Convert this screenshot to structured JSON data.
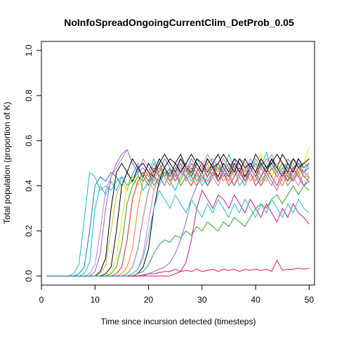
{
  "chart_data": {
    "type": "line",
    "title": "NoInfoSpreadOngoingCurrentClim_DetProb_0.05",
    "xlabel": "Time since incursion detected (timesteps)",
    "ylabel": "Total population (proportion of K)",
    "xlim": [
      0,
      51
    ],
    "ylim": [
      -0.04,
      1.04
    ],
    "xticks": [
      0,
      10,
      20,
      30,
      40,
      50
    ],
    "yticks": [
      0.0,
      0.2,
      0.4,
      0.6,
      0.8,
      1.0
    ],
    "ytick_labels": [
      "0.0",
      "0.2",
      "0.4",
      "0.6",
      "0.8",
      "1.0"
    ],
    "grid": false,
    "legend": "none",
    "x": [
      1,
      2,
      3,
      4,
      5,
      6,
      7,
      8,
      9,
      10,
      11,
      12,
      13,
      14,
      15,
      16,
      17,
      18,
      19,
      20,
      21,
      22,
      23,
      24,
      25,
      26,
      27,
      28,
      29,
      30,
      31,
      32,
      33,
      34,
      35,
      36,
      37,
      38,
      39,
      40,
      41,
      42,
      43,
      44,
      45,
      46,
      47,
      48,
      49,
      50
    ],
    "series": [
      {
        "color": "#17becf",
        "values": [
          0,
          0,
          0,
          0,
          0,
          0.01,
          0.05,
          0.25,
          0.46,
          0.44,
          0.38,
          0.4,
          0.38,
          0.42,
          0.44,
          0.4,
          0.45,
          0.5,
          0.42,
          0.46,
          0.52,
          0.45,
          0.4,
          0.47,
          0.44,
          0.5,
          0.42,
          0.46,
          0.52,
          0.48,
          0.44,
          0.5,
          0.42,
          0.46,
          0.54,
          0.48,
          0.5,
          0.44,
          0.46,
          0.52,
          0.48,
          0.55,
          0.47,
          0.5,
          0.46,
          0.52,
          0.48,
          0.5,
          0.46,
          0.5
        ]
      },
      {
        "color": "#1f77b4",
        "values": [
          0,
          0,
          0,
          0,
          0,
          0,
          0.01,
          0.04,
          0.2,
          0.4,
          0.44,
          0.42,
          0.46,
          0.44,
          0.4,
          0.46,
          0.42,
          0.48,
          0.44,
          0.4,
          0.46,
          0.5,
          0.44,
          0.48,
          0.42,
          0.46,
          0.5,
          0.44,
          0.4,
          0.46,
          0.52,
          0.48,
          0.42,
          0.46,
          0.5,
          0.44,
          0.48,
          0.42,
          0.46,
          0.5,
          0.44,
          0.48,
          0.52,
          0.46,
          0.5,
          0.44,
          0.48,
          0.5,
          0.46,
          0.48
        ]
      },
      {
        "color": "#00bcd4",
        "values": [
          0,
          0,
          0,
          0,
          0,
          0,
          0,
          0.01,
          0.06,
          0.3,
          0.4,
          0.36,
          0.42,
          0.38,
          0.44,
          0.4,
          0.42,
          0.46,
          0.38,
          0.42,
          0.44,
          0.4,
          0.46,
          0.42,
          0.38,
          0.44,
          0.48,
          0.42,
          0.46,
          0.4,
          0.44,
          0.5,
          0.42,
          0.46,
          0.44,
          0.48,
          0.4,
          0.44,
          0.5,
          0.46,
          0.42,
          0.46,
          0.5,
          0.44,
          0.48,
          0.42,
          0.46,
          0.5,
          0.44,
          0.46
        ]
      },
      {
        "color": "#e377c2",
        "values": [
          0,
          0,
          0,
          0,
          0,
          0,
          0,
          0,
          0.01,
          0.05,
          0.2,
          0.38,
          0.44,
          0.48,
          0.52,
          0.56,
          0.5,
          0.46,
          0.52,
          0.48,
          0.44,
          0.5,
          0.46,
          0.42,
          0.48,
          0.52,
          0.46,
          0.5,
          0.44,
          0.48,
          0.54,
          0.5,
          0.46,
          0.52,
          0.48,
          0.44,
          0.5,
          0.46,
          0.52,
          0.48,
          0.44,
          0.5,
          0.54,
          0.48,
          0.46,
          0.52,
          0.5,
          0.46,
          0.5,
          0.48
        ]
      },
      {
        "color": "#9467bd",
        "values": [
          0,
          0,
          0,
          0,
          0,
          0,
          0,
          0,
          0,
          0.02,
          0.1,
          0.3,
          0.44,
          0.5,
          0.54,
          0.56,
          0.5,
          0.46,
          0.48,
          0.44,
          0.5,
          0.46,
          0.52,
          0.48,
          0.44,
          0.5,
          0.46,
          0.52,
          0.48,
          0.44,
          0.4,
          0.46,
          0.5,
          0.44,
          0.48,
          0.52,
          0.46,
          0.44,
          0.5,
          0.46,
          0.52,
          0.48,
          0.44,
          0.5,
          0.46,
          0.4,
          0.44,
          0.48,
          0.46,
          0.44
        ]
      },
      {
        "color": "#000000",
        "values": [
          0,
          0,
          0,
          0,
          0,
          0,
          0,
          0,
          0,
          0,
          0.02,
          0.08,
          0.3,
          0.46,
          0.5,
          0.46,
          0.52,
          0.48,
          0.44,
          0.5,
          0.46,
          0.52,
          0.48,
          0.44,
          0.5,
          0.54,
          0.48,
          0.46,
          0.52,
          0.5,
          0.46,
          0.5,
          0.54,
          0.48,
          0.44,
          0.5,
          0.46,
          0.52,
          0.48,
          0.44,
          0.5,
          0.46,
          0.52,
          0.48,
          0.54,
          0.5,
          0.46,
          0.52,
          0.48,
          0.5
        ]
      },
      {
        "color": "#000000",
        "values": [
          0,
          0,
          0,
          0,
          0,
          0,
          0,
          0,
          0,
          0,
          0,
          0.01,
          0.04,
          0.2,
          0.4,
          0.46,
          0.42,
          0.48,
          0.5,
          0.46,
          0.44,
          0.5,
          0.54,
          0.5,
          0.46,
          0.52,
          0.48,
          0.44,
          0.5,
          0.46,
          0.52,
          0.48,
          0.44,
          0.5,
          0.46,
          0.52,
          0.5,
          0.44,
          0.48,
          0.54,
          0.5,
          0.46,
          0.52,
          0.48,
          0.44,
          0.5,
          0.46,
          0.52,
          0.48,
          0.5
        ]
      },
      {
        "color": "#bcbd22",
        "values": [
          0,
          0,
          0,
          0,
          0,
          0,
          0,
          0,
          0,
          0,
          0.01,
          0.05,
          0.2,
          0.36,
          0.42,
          0.38,
          0.44,
          0.4,
          0.46,
          0.42,
          0.38,
          0.44,
          0.48,
          0.42,
          0.46,
          0.4,
          0.44,
          0.5,
          0.46,
          0.42,
          0.48,
          0.44,
          0.4,
          0.46,
          0.42,
          0.48,
          0.44,
          0.4,
          0.46,
          0.5,
          0.44,
          0.42,
          0.48,
          0.44,
          0.4,
          0.46,
          0.42,
          0.48,
          0.44,
          0.46
        ]
      },
      {
        "color": "#ffd700",
        "values": [
          0,
          0,
          0,
          0,
          0,
          0,
          0,
          0,
          0,
          0,
          0,
          0,
          0.02,
          0.08,
          0.25,
          0.4,
          0.44,
          0.4,
          0.46,
          0.42,
          0.48,
          0.44,
          0.4,
          0.46,
          0.42,
          0.48,
          0.44,
          0.5,
          0.46,
          0.42,
          0.48,
          0.44,
          0.4,
          0.46,
          0.5,
          0.44,
          0.48,
          0.42,
          0.46,
          0.5,
          0.54,
          0.48,
          0.44,
          0.5,
          0.46,
          0.42,
          0.48,
          0.44,
          0.5,
          0.57
        ]
      },
      {
        "color": "#2ca02c",
        "values": [
          0,
          0,
          0,
          0,
          0,
          0,
          0,
          0,
          0,
          0,
          0,
          0,
          0.01,
          0.04,
          0.14,
          0.32,
          0.4,
          0.44,
          0.42,
          0.46,
          0.4,
          0.44,
          0.48,
          0.42,
          0.46,
          0.4,
          0.44,
          0.48,
          0.42,
          0.46,
          0.4,
          0.44,
          0.5,
          0.46,
          0.42,
          0.48,
          0.44,
          0.4,
          0.46,
          0.42,
          0.48,
          0.44,
          0.4,
          0.46,
          0.5,
          0.44,
          0.42,
          0.48,
          0.44,
          0.42
        ]
      },
      {
        "color": "#d62728",
        "values": [
          0,
          0,
          0,
          0,
          0,
          0,
          0,
          0,
          0,
          0,
          0,
          0,
          0,
          0.01,
          0.04,
          0.16,
          0.34,
          0.42,
          0.46,
          0.42,
          0.48,
          0.44,
          0.4,
          0.46,
          0.42,
          0.48,
          0.44,
          0.4,
          0.46,
          0.5,
          0.44,
          0.48,
          0.42,
          0.46,
          0.4,
          0.44,
          0.48,
          0.42,
          0.46,
          0.4,
          0.44,
          0.48,
          0.44,
          0.4,
          0.46,
          0.42,
          0.48,
          0.44,
          0.4,
          0.42
        ]
      },
      {
        "color": "#ff7f0e",
        "values": [
          0,
          0,
          0,
          0,
          0,
          0,
          0,
          0,
          0,
          0,
          0,
          0,
          0,
          0,
          0.01,
          0.04,
          0.12,
          0.3,
          0.42,
          0.46,
          0.42,
          0.48,
          0.44,
          0.4,
          0.46,
          0.42,
          0.48,
          0.44,
          0.4,
          0.46,
          0.5,
          0.44,
          0.48,
          0.42,
          0.46,
          0.4,
          0.44,
          0.48,
          0.42,
          0.46,
          0.4,
          0.44,
          0.48,
          0.44,
          0.4,
          0.46,
          0.42,
          0.48,
          0.44,
          0.44
        ]
      },
      {
        "color": "#7f7f7f",
        "values": [
          0,
          0,
          0,
          0,
          0,
          0,
          0,
          0,
          0,
          0,
          0,
          0,
          0,
          0,
          0,
          0.01,
          0.04,
          0.12,
          0.26,
          0.38,
          0.44,
          0.42,
          0.46,
          0.44,
          0.48,
          0.46,
          0.44,
          0.5,
          0.48,
          0.46,
          0.5,
          0.52,
          0.48,
          0.46,
          0.5,
          0.48,
          0.52,
          0.5,
          0.46,
          0.5,
          0.48,
          0.52,
          0.5,
          0.46,
          0.5,
          0.48,
          0.52,
          0.5,
          0.48,
          0.5
        ]
      },
      {
        "color": "#e377c2",
        "values": [
          0,
          0,
          0,
          0,
          0,
          0,
          0,
          0,
          0,
          0,
          0,
          0,
          0,
          0,
          0,
          0,
          0.01,
          0.03,
          0.1,
          0.24,
          0.38,
          0.44,
          0.4,
          0.46,
          0.42,
          0.48,
          0.44,
          0.5,
          0.46,
          0.42,
          0.48,
          0.44,
          0.4,
          0.46,
          0.42,
          0.48,
          0.44,
          0.4,
          0.46,
          0.42,
          0.48,
          0.44,
          0.4,
          0.46,
          0.42,
          0.48,
          0.44,
          0.4,
          0.46,
          0.44
        ]
      },
      {
        "color": "#000000",
        "values": [
          0,
          0,
          0,
          0,
          0,
          0,
          0,
          0,
          0,
          0,
          0,
          0,
          0,
          0,
          0,
          0,
          0,
          0.01,
          0.04,
          0.12,
          0.3,
          0.42,
          0.48,
          0.52,
          0.5,
          0.46,
          0.5,
          0.54,
          0.5,
          0.46,
          0.52,
          0.48,
          0.5,
          0.54,
          0.5,
          0.46,
          0.52,
          0.48,
          0.5,
          0.46,
          0.52,
          0.48,
          0.5,
          0.54,
          0.5,
          0.46,
          0.52,
          0.48,
          0.5,
          0.52
        ]
      },
      {
        "color": "#2ca02c",
        "values": [
          0,
          0,
          0,
          0,
          0,
          0,
          0,
          0,
          0,
          0,
          0,
          0,
          0,
          0,
          0,
          0,
          0,
          0.01,
          0.02,
          0.05,
          0.1,
          0.14,
          0.16,
          0.15,
          0.18,
          0.17,
          0.2,
          0.18,
          0.22,
          0.2,
          0.24,
          0.22,
          0.2,
          0.24,
          0.22,
          0.26,
          0.24,
          0.22,
          0.26,
          0.3,
          0.32,
          0.3,
          0.34,
          0.36,
          0.32,
          0.36,
          0.4,
          0.36,
          0.4,
          0.38
        ]
      },
      {
        "color": "#9467bd",
        "values": [
          0,
          0,
          0,
          0,
          0,
          0,
          0,
          0,
          0,
          0,
          0,
          0,
          0,
          0,
          0,
          0,
          0,
          0,
          0,
          0.01,
          0.02,
          0.03,
          0.04,
          0.06,
          0.1,
          0.16,
          0.24,
          0.34,
          0.4,
          0.44,
          0.42,
          0.46,
          0.42,
          0.48,
          0.44,
          0.4,
          0.46,
          0.42,
          0.48,
          0.44,
          0.4,
          0.46,
          0.42,
          0.38,
          0.44,
          0.48,
          0.42,
          0.46,
          0.4,
          0.44
        ]
      },
      {
        "color": "#d81b60",
        "values": [
          0,
          0,
          0,
          0,
          0,
          0,
          0,
          0,
          0,
          0,
          0,
          0,
          0,
          0,
          0,
          0,
          0,
          0,
          0.005,
          0.01,
          0.01,
          0.015,
          0.02,
          0.02,
          0.03,
          0.02,
          0.025,
          0.02,
          0.03,
          0.02,
          0.025,
          0.03,
          0.02,
          0.03,
          0.025,
          0.03,
          0.02,
          0.03,
          0.025,
          0.03,
          0.025,
          0.03,
          0.02,
          0.07,
          0.025,
          0.03,
          0.03,
          0.035,
          0.03,
          0.035
        ]
      },
      {
        "color": "#c71585",
        "values": [
          0,
          0,
          0,
          0,
          0,
          0,
          0,
          0,
          0,
          0,
          0,
          0,
          0,
          0,
          0,
          0,
          0,
          0,
          0,
          0,
          0,
          0,
          0,
          0,
          0.01,
          0.02,
          0.06,
          0.16,
          0.3,
          0.38,
          0.34,
          0.3,
          0.36,
          0.34,
          0.3,
          0.36,
          0.32,
          0.28,
          0.34,
          0.3,
          0.26,
          0.32,
          0.28,
          0.24,
          0.3,
          0.26,
          0.32,
          0.28,
          0.26,
          0.23
        ]
      },
      {
        "color": "#17becf",
        "values": [
          0,
          0,
          0,
          0,
          0,
          0,
          0,
          0,
          0,
          0,
          0,
          0,
          0,
          0,
          0,
          0,
          0.01,
          0.03,
          0.08,
          0.18,
          0.3,
          0.38,
          0.34,
          0.3,
          0.36,
          0.32,
          0.28,
          0.34,
          0.3,
          0.26,
          0.32,
          0.28,
          0.34,
          0.3,
          0.26,
          0.32,
          0.28,
          0.34,
          0.3,
          0.26,
          0.32,
          0.28,
          0.34,
          0.3,
          0.26,
          0.32,
          0.28,
          0.34,
          0.3,
          0.28
        ]
      }
    ]
  }
}
